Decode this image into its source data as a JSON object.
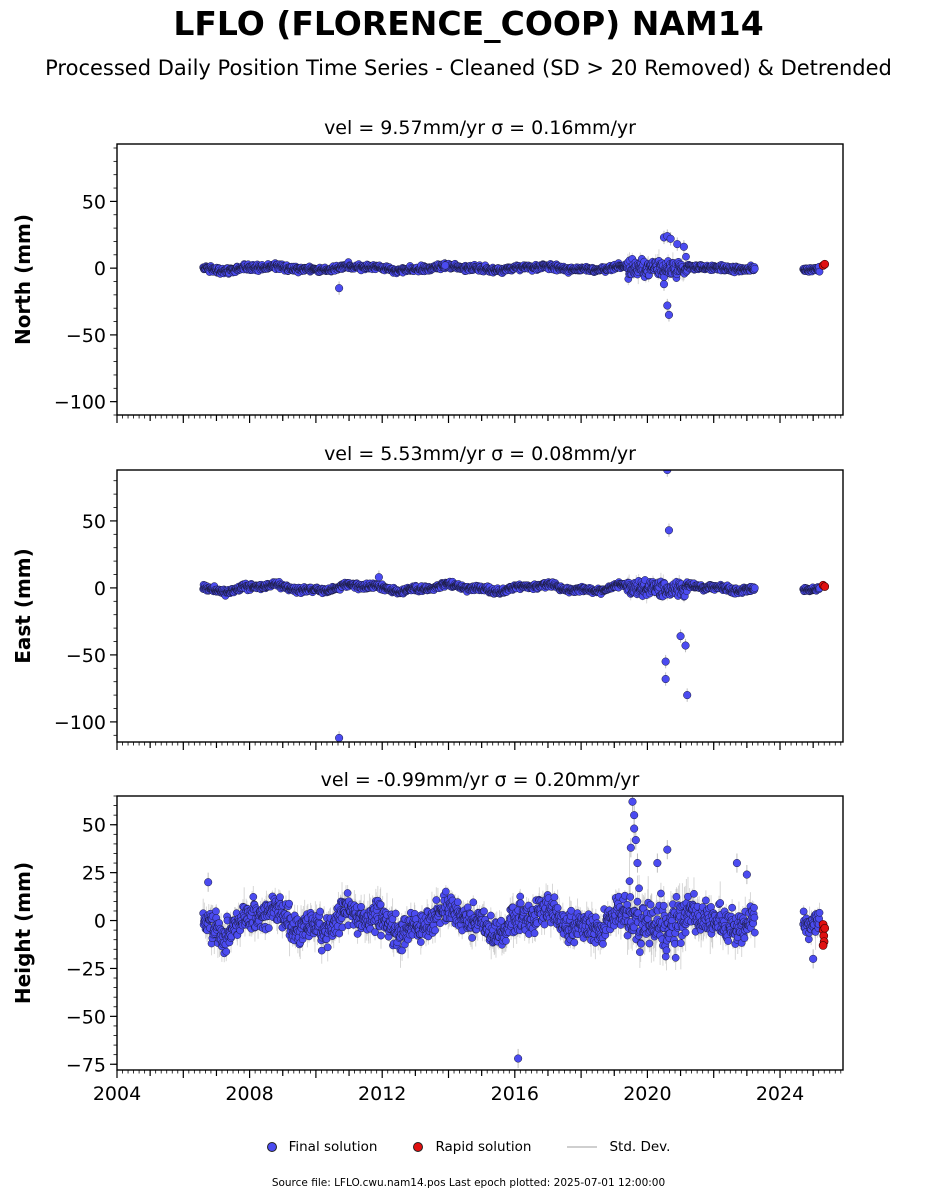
{
  "title": "LFLO (FLORENCE_COOP) NAM14",
  "subtitle": "Processed Daily Position Time Series - Cleaned (SD > 20 Removed) & Detrended",
  "legend": {
    "final": "Final solution",
    "rapid": "Rapid solution",
    "std": "Std. Dev."
  },
  "footer": "Source file: LFLO.cwu.nam14.pos  Last epoch plotted: 2025-07-01 12:00:00",
  "colors": {
    "final": "#4b4bf0",
    "rapid": "#e01010",
    "std": "#bdbdbd"
  },
  "chart_data": [
    {
      "type": "scatter",
      "title": "vel = 9.57mm/yr   σ = 0.16mm/yr",
      "ylabel": "North (mm)",
      "xlim": [
        2004.0,
        2025.9
      ],
      "ylim": [
        -110,
        93
      ],
      "yticks": [
        -100,
        -50,
        0,
        50
      ],
      "show_xticklabels": false,
      "segments": [
        {
          "x0": 2006.6,
          "x1": 2019.4,
          "noise": 1.5,
          "amp": 1.2
        },
        {
          "x0": 2019.4,
          "x1": 2021.2,
          "noise": 4.5,
          "amp": 0.5
        },
        {
          "x0": 2021.2,
          "x1": 2023.25,
          "noise": 1.5,
          "amp": 0.6
        },
        {
          "x0": 2024.7,
          "x1": 2025.2,
          "noise": 1.2,
          "amp": 1.0
        }
      ],
      "outliers": [
        {
          "x": 2010.7,
          "y": -15
        },
        {
          "x": 2013.9,
          "y": 2
        },
        {
          "x": 2020.5,
          "y": 23
        },
        {
          "x": 2020.6,
          "y": 24
        },
        {
          "x": 2020.7,
          "y": 22
        },
        {
          "x": 2020.6,
          "y": -28
        },
        {
          "x": 2020.65,
          "y": -35
        },
        {
          "x": 2020.9,
          "y": 18
        },
        {
          "x": 2021.1,
          "y": 16
        },
        {
          "x": 2020.5,
          "y": -12
        }
      ],
      "rapid": [
        {
          "x": 2025.3,
          "y": 2
        },
        {
          "x": 2025.35,
          "y": 3
        }
      ]
    },
    {
      "type": "scatter",
      "title": "vel = 5.53mm/yr   σ = 0.08mm/yr",
      "ylabel": "East (mm)",
      "xlim": [
        2004.0,
        2025.9
      ],
      "ylim": [
        -115,
        88
      ],
      "yticks": [
        -100,
        -50,
        0,
        50
      ],
      "show_xticklabels": false,
      "segments": [
        {
          "x0": 2006.6,
          "x1": 2019.4,
          "noise": 1.4,
          "amp": 2.0
        },
        {
          "x0": 2019.4,
          "x1": 2021.2,
          "noise": 4.0,
          "amp": 0.5
        },
        {
          "x0": 2021.2,
          "x1": 2023.25,
          "noise": 1.5,
          "amp": 1.5
        },
        {
          "x0": 2024.7,
          "x1": 2025.2,
          "noise": 1.2,
          "amp": 1.0
        }
      ],
      "outliers": [
        {
          "x": 2010.7,
          "y": -112
        },
        {
          "x": 2011.9,
          "y": 8
        },
        {
          "x": 2020.6,
          "y": 88
        },
        {
          "x": 2020.65,
          "y": 43
        },
        {
          "x": 2020.55,
          "y": -55
        },
        {
          "x": 2020.55,
          "y": -68
        },
        {
          "x": 2021.0,
          "y": -36
        },
        {
          "x": 2021.15,
          "y": -43
        },
        {
          "x": 2021.2,
          "y": -80
        }
      ],
      "rapid": [
        {
          "x": 2025.3,
          "y": 2
        },
        {
          "x": 2025.35,
          "y": 1
        }
      ]
    },
    {
      "type": "scatter",
      "title": "vel = -0.99mm/yr   σ = 0.20mm/yr",
      "ylabel": "Height (mm)",
      "xlim": [
        2004.0,
        2025.9
      ],
      "ylim": [
        -78,
        65
      ],
      "yticks": [
        -75,
        -50,
        -25,
        0,
        25,
        50
      ],
      "xticks": [
        2004,
        2008,
        2012,
        2016,
        2020,
        2024
      ],
      "show_xticklabels": true,
      "segments": [
        {
          "x0": 2006.6,
          "x1": 2019.4,
          "noise": 5.5,
          "amp": 5.0
        },
        {
          "x0": 2019.4,
          "x1": 2021.2,
          "noise": 9.0,
          "amp": 3.0
        },
        {
          "x0": 2021.2,
          "x1": 2023.25,
          "noise": 6.0,
          "amp": 3.0
        },
        {
          "x0": 2024.7,
          "x1": 2025.2,
          "noise": 5.0,
          "amp": 2.0
        }
      ],
      "outliers": [
        {
          "x": 2016.1,
          "y": -72
        },
        {
          "x": 2019.55,
          "y": 62
        },
        {
          "x": 2019.6,
          "y": 55
        },
        {
          "x": 2019.6,
          "y": 48
        },
        {
          "x": 2019.65,
          "y": 42
        },
        {
          "x": 2019.5,
          "y": 38
        },
        {
          "x": 2019.7,
          "y": 30
        },
        {
          "x": 2020.3,
          "y": 30
        },
        {
          "x": 2020.6,
          "y": 37
        },
        {
          "x": 2022.7,
          "y": 30
        },
        {
          "x": 2023.0,
          "y": 24
        },
        {
          "x": 2006.75,
          "y": 20
        },
        {
          "x": 2025.0,
          "y": -20
        }
      ],
      "rapid": [
        {
          "x": 2025.3,
          "y": -2
        },
        {
          "x": 2025.3,
          "y": -5
        },
        {
          "x": 2025.32,
          "y": -8
        },
        {
          "x": 2025.33,
          "y": -11
        },
        {
          "x": 2025.3,
          "y": -13
        },
        {
          "x": 2025.35,
          "y": -4
        }
      ]
    }
  ]
}
